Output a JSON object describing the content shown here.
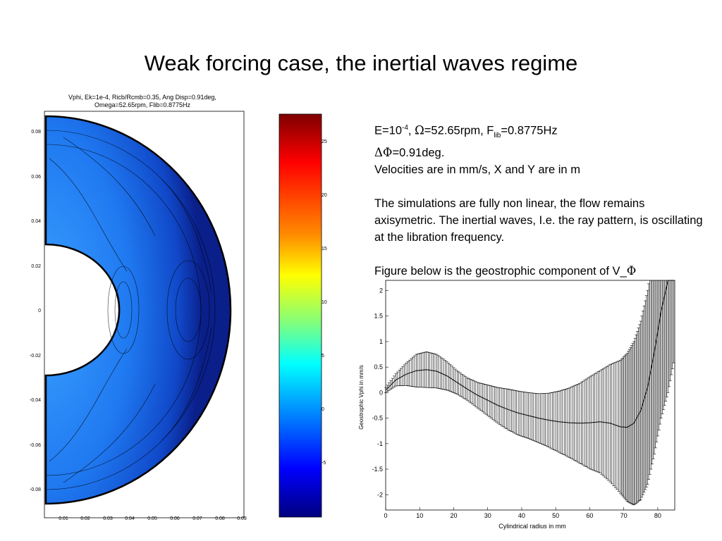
{
  "slide": {
    "title": "Weak forcing case, the inertial waves regime"
  },
  "contour_plot": {
    "title_line1": "Vphi, Ek=1e-4, Ricb/Rcmb=0.35, Ang Disp=0.91deg,",
    "title_line2": "Omega=52.65rpm, Flib=0.8775Hz",
    "x_ticks": [
      "0.01",
      "0.02",
      "0.03",
      "0.04",
      "0.05",
      "0.06",
      "0.07",
      "0.08",
      "0.09"
    ],
    "y_ticks": [
      "0.08",
      "0.06",
      "0.04",
      "0.02",
      "0",
      "-0.02",
      "-0.04",
      "-0.06",
      "-0.08"
    ]
  },
  "colorbar": {
    "ticks": [
      "25",
      "20",
      "15",
      "10",
      "5",
      "0",
      "-5"
    ]
  },
  "text": {
    "line1_prefix": "E=10",
    "line1_exp": "-4",
    "line1_sep": ", ",
    "omega_symbol": "Ω",
    "line1_mid": "=52.65rpm, F",
    "line1_sub": "lib",
    "line1_end": "=0.8775Hz",
    "line2_symbol": "ΔΦ",
    "line2_rest": "=0.91deg.",
    "line3": "Velocities are in mm/s, X and Y are in m",
    "para2": "The simulations are fully non linear, the flow remains axisymetric. The inertial waves, I.e. the ray pattern, is oscillating at the libration frequency.",
    "para3_prefix": "Figure below is the geostrophic component of V_",
    "para3_symbol": "Φ"
  },
  "chart_data": {
    "type": "line",
    "xlabel": "Cylindrical radius in mm",
    "ylabel": "Geostrophic Vphi in mm/s",
    "xlim": [
      0,
      85
    ],
    "ylim": [
      -2.3,
      2.2
    ],
    "x_ticks": [
      0,
      10,
      20,
      30,
      40,
      50,
      60,
      70,
      80
    ],
    "y_ticks": [
      2,
      1.5,
      1,
      0.5,
      0,
      -0.5,
      -1,
      -1.5,
      -2
    ],
    "series": [
      {
        "x": [
          0,
          3,
          6,
          9,
          12,
          15,
          18,
          21,
          24,
          27,
          30,
          33,
          36,
          39,
          42,
          45,
          48,
          51,
          54,
          57,
          60,
          63,
          66,
          69,
          71,
          73,
          75,
          77,
          79,
          81,
          83,
          85
        ],
        "y": [
          0.05,
          0.25,
          0.36,
          0.43,
          0.45,
          0.42,
          0.33,
          0.2,
          0.07,
          -0.05,
          -0.15,
          -0.25,
          -0.33,
          -0.4,
          -0.45,
          -0.5,
          -0.54,
          -0.57,
          -0.59,
          -0.6,
          -0.59,
          -0.57,
          -0.6,
          -0.67,
          -0.68,
          -0.6,
          -0.35,
          0.1,
          0.8,
          1.6,
          2.2,
          2.5
        ],
        "err": [
          0.05,
          0.12,
          0.22,
          0.32,
          0.35,
          0.33,
          0.28,
          0.23,
          0.22,
          0.25,
          0.3,
          0.35,
          0.4,
          0.43,
          0.45,
          0.48,
          0.53,
          0.6,
          0.68,
          0.78,
          0.9,
          1.0,
          1.15,
          1.3,
          1.45,
          1.6,
          1.75,
          1.9,
          2.0,
          2.1,
          2.2,
          1.8
        ]
      }
    ]
  }
}
